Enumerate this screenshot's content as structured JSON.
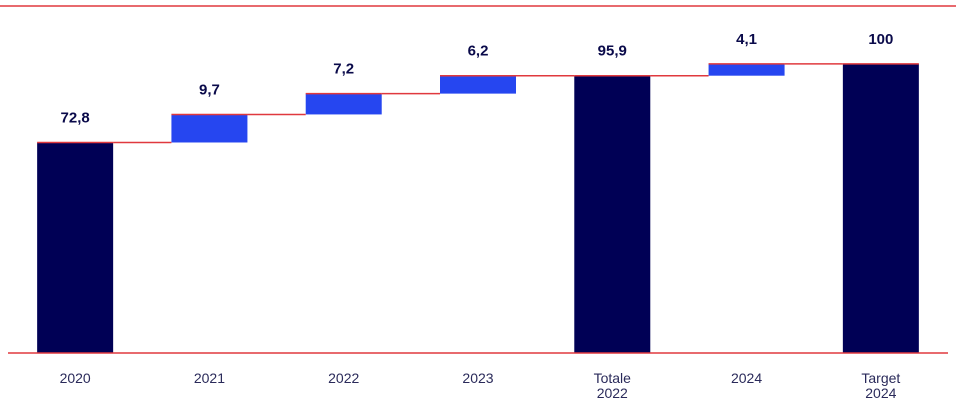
{
  "chart_data": {
    "type": "bar",
    "subtype": "waterfall",
    "categories": [
      {
        "label": [
          "2020"
        ],
        "kind": "total"
      },
      {
        "label": [
          "2021"
        ],
        "kind": "delta"
      },
      {
        "label": [
          "2022"
        ],
        "kind": "delta"
      },
      {
        "label": [
          "2023"
        ],
        "kind": "delta"
      },
      {
        "label": [
          "Totale",
          "2022"
        ],
        "kind": "total"
      },
      {
        "label": [
          "2024"
        ],
        "kind": "delta"
      },
      {
        "label": [
          "Target",
          "2024"
        ],
        "kind": "total"
      }
    ],
    "values": [
      72.8,
      9.7,
      7.2,
      6.2,
      95.9,
      4.1,
      100
    ],
    "value_labels": [
      "72,8",
      "9,7",
      "7,2",
      "6,2",
      "95,9",
      "4,1",
      "100"
    ],
    "title": "",
    "xlabel": "",
    "ylabel": "",
    "ylim": [
      0,
      120
    ],
    "grid": true,
    "legend": "none",
    "colors": {
      "total": "#000055",
      "delta": "#2646f0",
      "connector": "#e0393e",
      "grid": "#ffffff",
      "baseline": "#e0393e",
      "text": "#0a0a4a"
    }
  }
}
